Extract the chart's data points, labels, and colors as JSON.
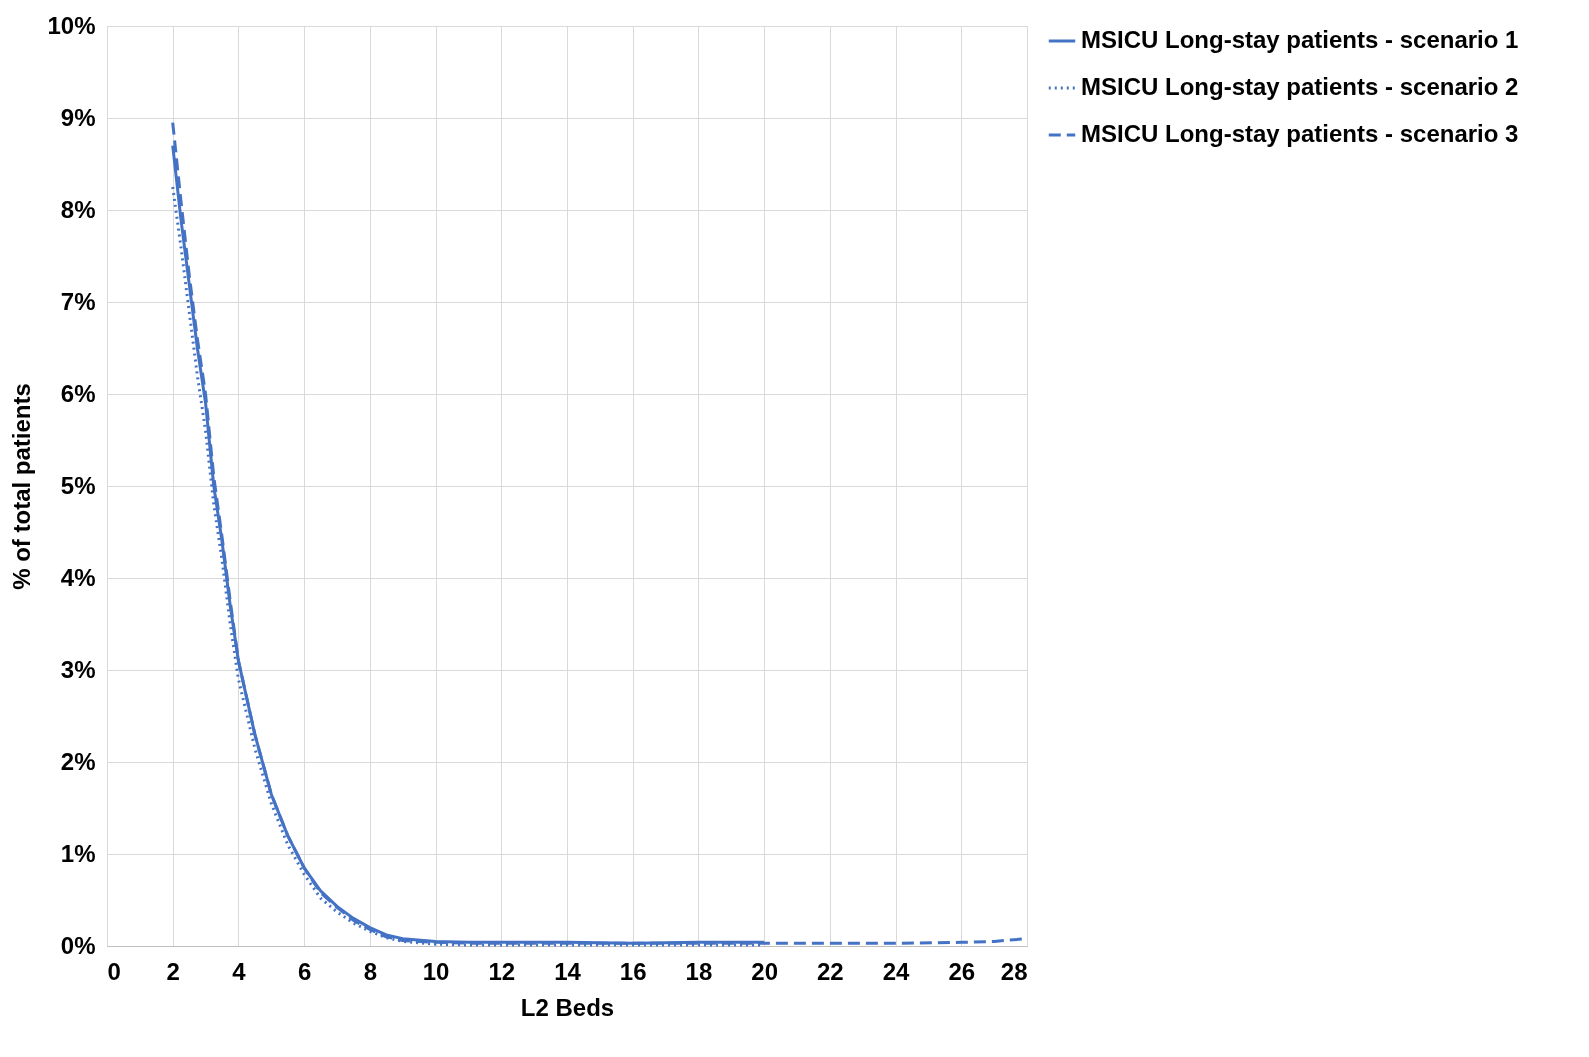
{
  "chart_data": {
    "type": "line",
    "xlabel": "L2 Beds",
    "ylabel": "% of  total patients",
    "xlim": [
      0,
      28
    ],
    "xticks": [
      0,
      2,
      4,
      6,
      8,
      10,
      12,
      14,
      16,
      18,
      20,
      22,
      24,
      26,
      28
    ],
    "ylim": [
      0,
      10
    ],
    "yticks": [
      {
        "value": 0,
        "label": "0%"
      },
      {
        "value": 1,
        "label": "1%"
      },
      {
        "value": 2,
        "label": "2%"
      },
      {
        "value": 3,
        "label": "3%"
      },
      {
        "value": 4,
        "label": "4%"
      },
      {
        "value": 5,
        "label": "5%"
      },
      {
        "value": 6,
        "label": "6%"
      },
      {
        "value": 7,
        "label": "7%"
      },
      {
        "value": 8,
        "label": "8%"
      },
      {
        "value": 9,
        "label": "9%"
      },
      {
        "value": 10,
        "label": "10%"
      }
    ],
    "grid": true,
    "legend": "right",
    "marker": "none",
    "series": [
      {
        "name": "MSICU Long-stay patients - scenario 1",
        "color": "#4472c4",
        "line_style": "solid",
        "x": [
          2,
          2.25,
          2.5,
          2.75,
          3,
          3.25,
          3.5,
          3.75,
          4,
          4.5,
          5,
          5.5,
          6,
          6.5,
          7,
          7.5,
          8,
          8.5,
          9,
          10,
          11,
          12,
          14,
          16,
          18,
          20
        ],
        "values": [
          8.7,
          7.9,
          7.2,
          6.5,
          5.9,
          5.0,
          4.4,
          3.7,
          3.1,
          2.3,
          1.65,
          1.2,
          0.85,
          0.6,
          0.43,
          0.3,
          0.2,
          0.12,
          0.08,
          0.05,
          0.04,
          0.04,
          0.04,
          0.03,
          0.04,
          0.04
        ]
      },
      {
        "name": "MSICU Long-stay patients - scenario 2",
        "color": "#4472c4",
        "line_style": "dotted",
        "x": [
          2,
          2.25,
          2.5,
          2.75,
          3,
          3.25,
          3.5,
          3.75,
          4,
          4.5,
          5,
          5.5,
          6,
          6.5,
          7,
          7.5,
          8,
          8.5,
          9,
          10,
          11,
          12,
          14,
          16,
          18,
          20
        ],
        "values": [
          8.25,
          7.6,
          6.9,
          6.2,
          5.6,
          4.8,
          4.2,
          3.5,
          2.9,
          2.15,
          1.55,
          1.1,
          0.78,
          0.52,
          0.37,
          0.25,
          0.16,
          0.09,
          0.05,
          0.02,
          0.01,
          0.01,
          0.01,
          0.01,
          0.01,
          0.01
        ]
      },
      {
        "name": "MSICU Long-stay patients - scenario 3",
        "color": "#4472c4",
        "line_style": "dashed",
        "x": [
          2,
          2.25,
          2.5,
          2.75,
          3,
          3.25,
          3.5,
          3.75,
          4,
          4.5,
          5,
          5.5,
          6,
          6.5,
          7,
          7.5,
          8,
          8.5,
          9,
          10,
          11,
          12,
          14,
          16,
          18,
          20,
          22,
          24,
          26,
          27,
          28
        ],
        "values": [
          8.95,
          8.1,
          7.3,
          6.6,
          6.0,
          5.1,
          4.45,
          3.75,
          3.1,
          2.3,
          1.65,
          1.2,
          0.85,
          0.58,
          0.42,
          0.28,
          0.18,
          0.1,
          0.06,
          0.04,
          0.03,
          0.03,
          0.03,
          0.03,
          0.03,
          0.03,
          0.03,
          0.03,
          0.04,
          0.05,
          0.08
        ]
      }
    ]
  }
}
